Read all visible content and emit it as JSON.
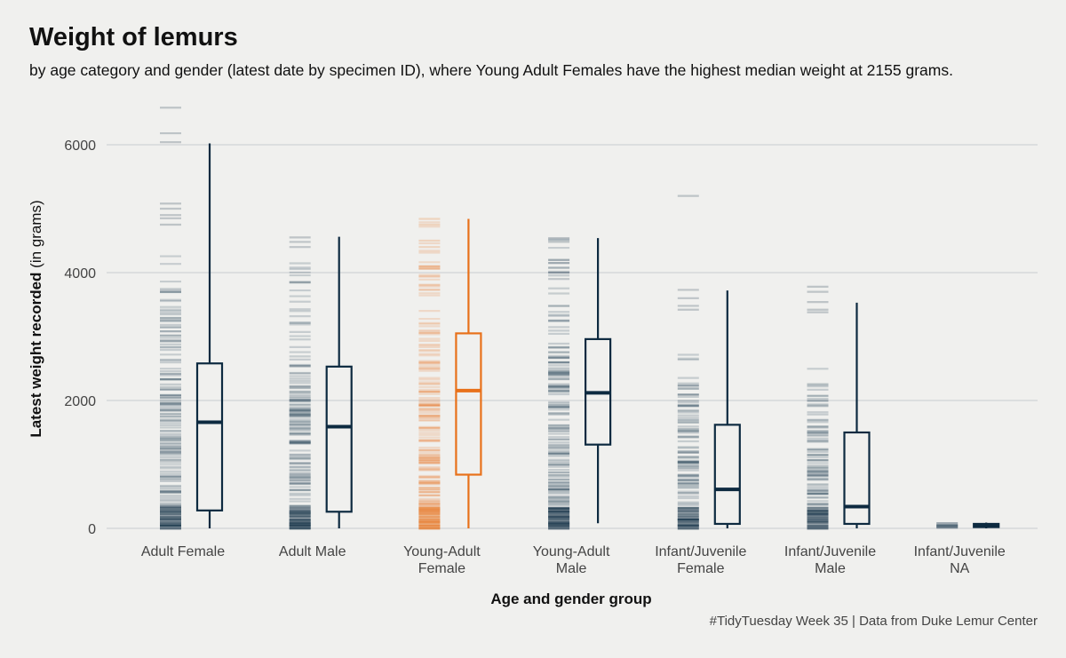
{
  "title": "Weight of lemurs",
  "subtitle": "by age category and gender (latest date by specimen ID), where Young Adult Females have the highest median weight at 2155 grams.",
  "caption": "#TidyTuesday Week 35 | Data from Duke Lemur Center",
  "colors": {
    "default": "#0d2a40",
    "highlight": "#e8711a",
    "grid": "#c8ccd0",
    "background": "#f0f0ee"
  },
  "chart_data": {
    "type": "boxplot",
    "xlabel": "Age and gender group",
    "ylabel_bold": "Latest weight recorded",
    "ylabel_rest": " (in grams)",
    "ylim": [
      0,
      6600
    ],
    "yticks": [
      0,
      2000,
      4000,
      6000
    ],
    "grid": "horizontal",
    "highlight_category": "Young-Adult Female",
    "groups": [
      {
        "label": [
          "Adult Female"
        ],
        "highlight": false,
        "box": {
          "min": 0,
          "q1": 280,
          "median": 1660,
          "q3": 2580,
          "max": 6020
        },
        "strips": [
          6580,
          6180,
          6040,
          5080,
          5000,
          4900,
          4850,
          4750
        ]
      },
      {
        "label": [
          "Adult Male"
        ],
        "highlight": false,
        "box": {
          "min": 0,
          "q1": 260,
          "median": 1590,
          "q3": 2530,
          "max": 4560
        },
        "strips": [
          4550,
          4480,
          4400
        ]
      },
      {
        "label": [
          "Young-Adult",
          "Female"
        ],
        "highlight": true,
        "box": {
          "min": 0,
          "q1": 840,
          "median": 2155,
          "q3": 3050,
          "max": 4840
        },
        "strips": [
          4840,
          4750,
          4500,
          4400,
          4100,
          1150,
          1070
        ]
      },
      {
        "label": [
          "Young-Adult",
          "Male"
        ],
        "highlight": false,
        "box": {
          "min": 80,
          "q1": 1310,
          "median": 2120,
          "q3": 2960,
          "max": 4540
        },
        "strips": [
          4540,
          4480,
          4200,
          4150,
          4000,
          3900,
          200,
          100
        ]
      },
      {
        "label": [
          "Infant/Juvenile",
          "Female"
        ],
        "highlight": false,
        "box": {
          "min": 0,
          "q1": 70,
          "median": 610,
          "q3": 1620,
          "max": 3720
        },
        "strips": [
          5200,
          3730,
          3600,
          3480,
          3420
        ]
      },
      {
        "label": [
          "Infant/Juvenile",
          "Male"
        ],
        "highlight": false,
        "box": {
          "min": 0,
          "q1": 70,
          "median": 340,
          "q3": 1500,
          "max": 3530
        },
        "strips": [
          3780,
          3700,
          3540,
          3420,
          3380
        ]
      },
      {
        "label": [
          "Infant/Juvenile",
          "NA"
        ],
        "highlight": false,
        "box": {
          "min": 0,
          "q1": 20,
          "median": 40,
          "q3": 70,
          "max": 90
        },
        "strips": [
          80,
          40,
          10
        ]
      }
    ]
  }
}
